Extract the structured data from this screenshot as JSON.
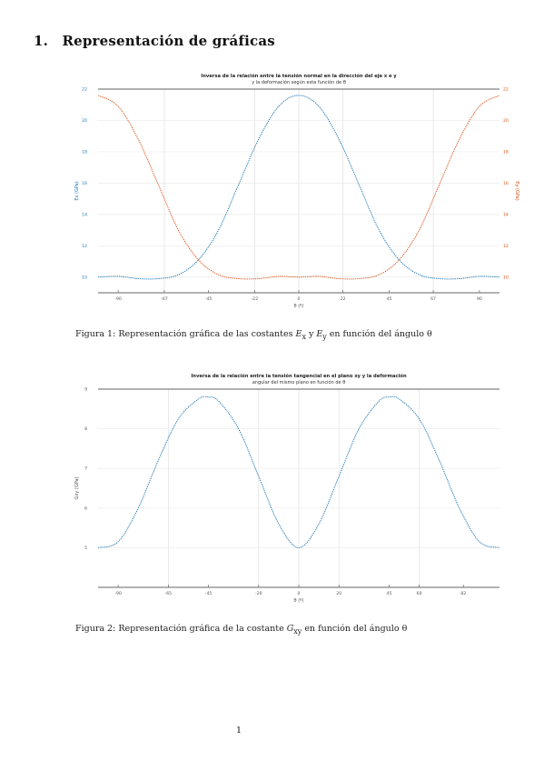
{
  "section": {
    "number": "1.",
    "title": "Representación de gráficas"
  },
  "figures": [
    {
      "caption": {
        "label": "Figura 1:",
        "text": "Representación gráfica de las costantes",
        "sym1": "E",
        "sub1": "x",
        "mid": "y",
        "sym2": "E",
        "sub2": "y",
        "tail": "en función del ángulo θ"
      },
      "chart_data": {
        "type": "line",
        "title": "Inversa de la relación entre la tensión normal en la dirección del eje x e y",
        "subtitle": "y la deformación según esta función de θ",
        "xlabel": "θ (º)",
        "ylabel_left": "Ex (GPa)",
        "ylabel_right": "Ey (GPa)",
        "xlim": [
          -100,
          100
        ],
        "xticks": [
          -90,
          -67,
          -45,
          -22,
          0,
          22,
          45,
          67,
          90
        ],
        "xtick_labels": [
          "-90",
          "-67",
          "-45",
          "-22",
          "0",
          "22",
          "45",
          "67",
          "90"
        ],
        "ylim_left": [
          9,
          22
        ],
        "ylim_right": [
          9,
          22
        ],
        "yticks_left": [
          10,
          12,
          14,
          16,
          18,
          20,
          22
        ],
        "yticks_right": [
          10,
          12,
          14,
          16,
          18,
          20,
          22
        ],
        "grid": true,
        "series": [
          {
            "name": "Ex",
            "axis": "left",
            "color": "#1f77b4",
            "x": [
              -100,
              -90,
              -80,
              -70,
              -60,
              -50,
              -40,
              -30,
              -20,
              -10,
              0,
              10,
              20,
              30,
              40,
              50,
              60,
              70,
              80,
              90,
              100
            ],
            "y": [
              10.0,
              10.05,
              9.9,
              9.9,
              10.15,
              11.1,
              13.0,
              15.9,
              18.8,
              20.9,
              21.6,
              20.9,
              18.8,
              15.9,
              13.0,
              11.1,
              10.15,
              9.9,
              9.9,
              10.05,
              10.0
            ]
          },
          {
            "name": "Ey",
            "axis": "right",
            "color": "#d95319",
            "x": [
              -100,
              -90,
              -80,
              -70,
              -60,
              -50,
              -40,
              -30,
              -20,
              -10,
              0,
              10,
              20,
              30,
              40,
              50,
              60,
              70,
              80,
              90,
              100
            ],
            "y": [
              21.6,
              20.9,
              18.8,
              15.9,
              13.0,
              11.1,
              10.15,
              9.9,
              9.9,
              10.05,
              10.0,
              10.05,
              9.9,
              9.9,
              10.15,
              11.1,
              13.0,
              15.9,
              18.8,
              20.9,
              21.6
            ]
          }
        ]
      }
    },
    {
      "caption": {
        "label": "Figura 2:",
        "text": "Representación gráfica de la costante",
        "sym1": "G",
        "sub1": "xy",
        "tail": "en función del ángulo θ"
      },
      "chart_data": {
        "type": "line",
        "title": "Inversa de la relación entre la tensión tangencial en el plano xy y la deformación",
        "subtitle": "angular del mismo plano en función de θ",
        "xlabel": "θ (º)",
        "ylabel": "Gxy (GPa)",
        "xlim": [
          -100,
          100
        ],
        "xticks": [
          -90,
          -65,
          -45,
          -20,
          0,
          20,
          45,
          60,
          82
        ],
        "xtick_labels": [
          "-90",
          "-65",
          "-45",
          "-20",
          "0",
          "20",
          "45",
          "60",
          "82"
        ],
        "ylim": [
          4,
          9
        ],
        "yticks": [
          5,
          6,
          7,
          8,
          9
        ],
        "grid": true,
        "series": [
          {
            "name": "Gxy",
            "color": "#1f77b4",
            "x": [
              -100,
              -90,
              -80,
              -70,
              -60,
              -50,
              -45,
              -40,
              -30,
              -20,
              -10,
              0,
              10,
              20,
              30,
              40,
              45,
              50,
              60,
              70,
              80,
              90,
              100
            ],
            "y": [
              5.0,
              5.15,
              6.0,
              7.2,
              8.25,
              8.75,
              8.8,
              8.7,
              8.0,
              6.8,
              5.6,
              5.0,
              5.6,
              6.8,
              8.0,
              8.7,
              8.8,
              8.75,
              8.25,
              7.2,
              6.0,
              5.15,
              5.0
            ]
          }
        ]
      }
    }
  ],
  "page_number": "1"
}
